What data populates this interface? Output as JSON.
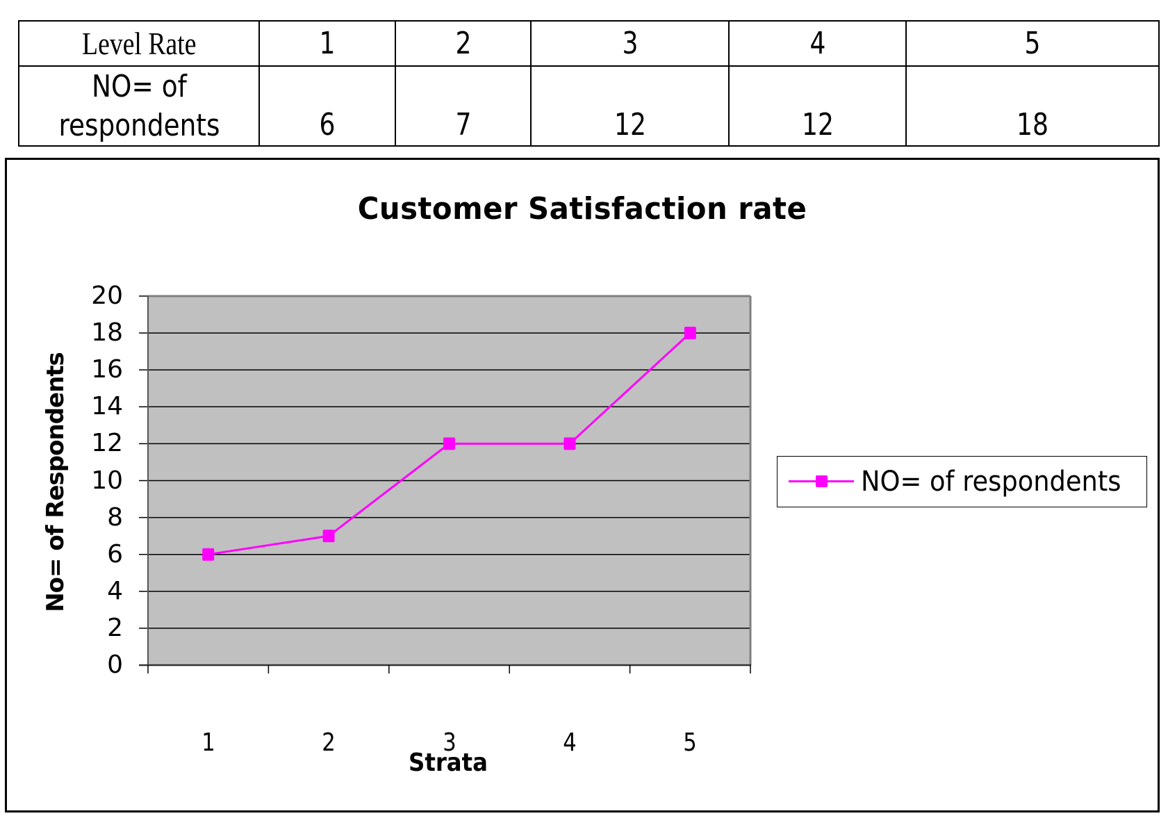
{
  "table": {
    "header_label": "Level Rate",
    "row_label_line1": "NO= of",
    "row_label_line2": "respondents",
    "levels": [
      "1",
      "2",
      "3",
      "4",
      "5"
    ],
    "counts": [
      "6",
      "7",
      "12",
      "12",
      "18"
    ]
  },
  "chart": {
    "title": "Customer Satisfaction rate",
    "y_axis_title": "No= of Respondents",
    "x_axis_title": "Strata",
    "y_ticks": [
      "20",
      "18",
      "16",
      "14",
      "12",
      "10",
      "8",
      "6",
      "4",
      "2",
      "0"
    ],
    "x_ticks": [
      "1",
      "2",
      "3",
      "4",
      "5"
    ],
    "legend_label": "NO= of respondents",
    "colors": {
      "series": "#FF00FF",
      "plot_background": "#C0C0C0",
      "gridline": "#000000",
      "plot_border": "#808080"
    }
  },
  "chart_data": {
    "type": "line",
    "title": "Customer Satisfaction rate",
    "xlabel": "Strata",
    "ylabel": "No= of Respondents",
    "categories": [
      "1",
      "2",
      "3",
      "4",
      "5"
    ],
    "series": [
      {
        "name": "NO= of respondents",
        "values": [
          6,
          7,
          12,
          12,
          18
        ],
        "color": "#FF00FF",
        "marker": "square"
      }
    ],
    "ylim": [
      0,
      20
    ],
    "y_tick_step": 2,
    "grid": {
      "horizontal": true,
      "vertical": false
    },
    "legend_position": "right",
    "plot_background": "#C0C0C0"
  }
}
